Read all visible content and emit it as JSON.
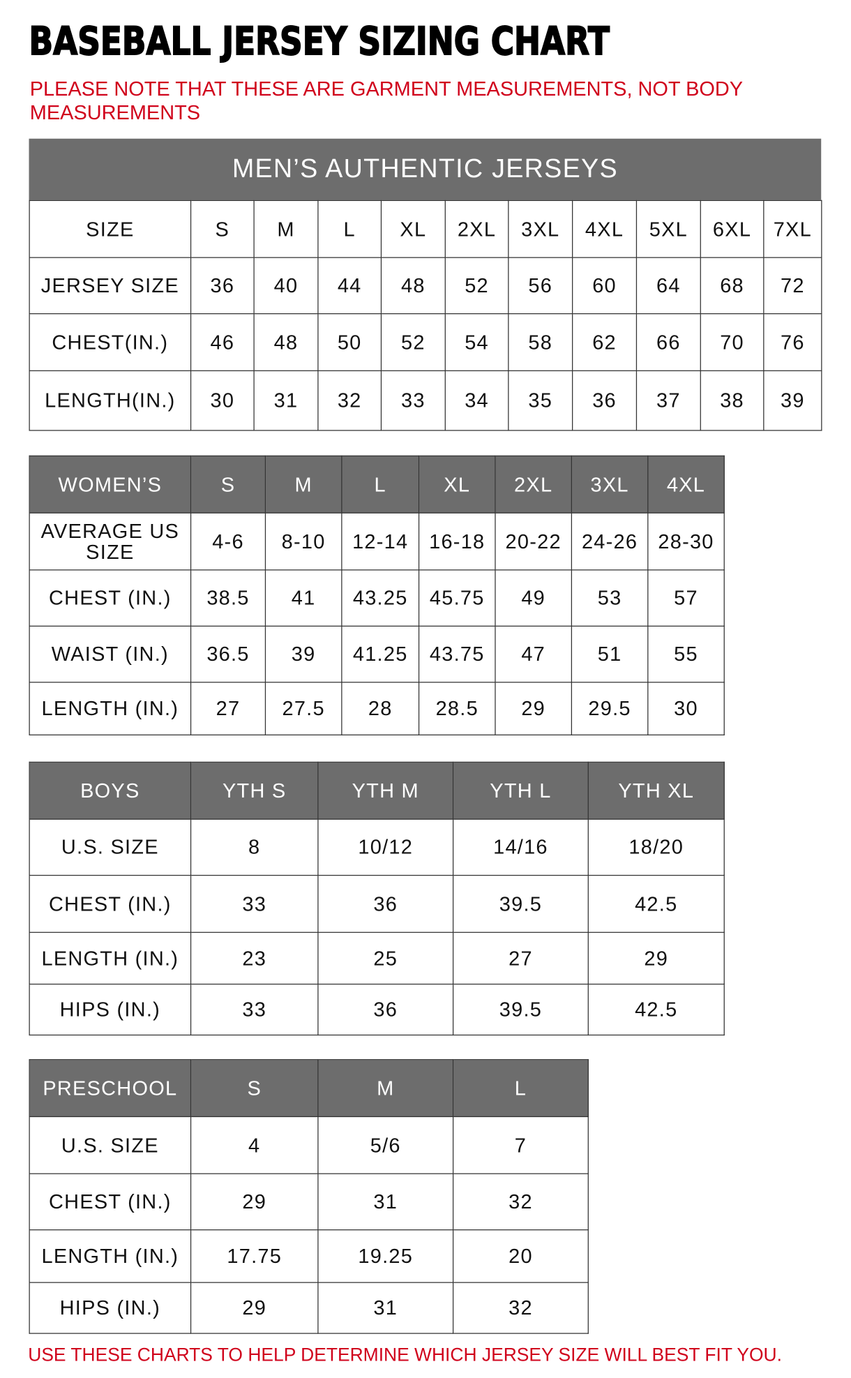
{
  "title": "BASEBALL JERSEY SIZING CHART",
  "note": "PLEASE NOTE THAT THESE ARE GARMENT MEASUREMENTS, NOT BODY MEASUREMENTS",
  "footer": "USE THESE CHARTS TO HELP DETERMINE WHICH JERSEY SIZE WILL BEST FIT YOU.",
  "colors": {
    "header_gray": "#6d6d6d",
    "note_red": "#d0021b"
  },
  "mens": {
    "banner": "MEN’S AUTHENTIC JERSEYS",
    "rows": [
      [
        "SIZE",
        "S",
        "M",
        "L",
        "XL",
        "2XL",
        "3XL",
        "4XL",
        "5XL",
        "6XL",
        "7XL"
      ],
      [
        "JERSEY SIZE",
        "36",
        "40",
        "44",
        "48",
        "52",
        "56",
        "60",
        "64",
        "68",
        "72"
      ],
      [
        "CHEST(IN.)",
        "46",
        "48",
        "50",
        "52",
        "54",
        "58",
        "62",
        "66",
        "70",
        "76"
      ],
      [
        "LENGTH(IN.)",
        "30",
        "31",
        "32",
        "33",
        "34",
        "35",
        "36",
        "37",
        "38",
        "39"
      ]
    ]
  },
  "womens": {
    "rows": [
      [
        "WOMEN’S",
        "S",
        "M",
        "L",
        "XL",
        "2XL",
        "3XL",
        "4XL"
      ],
      [
        "AVERAGE US SIZE",
        "4-6",
        "8-10",
        "12-14",
        "16-18",
        "20-22",
        "24-26",
        "28-30"
      ],
      [
        "CHEST (IN.)",
        "38.5",
        "41",
        "43.25",
        "45.75",
        "49",
        "53",
        "57"
      ],
      [
        "WAIST (IN.)",
        "36.5",
        "39",
        "41.25",
        "43.75",
        "47",
        "51",
        "55"
      ],
      [
        "LENGTH (IN.)",
        "27",
        "27.5",
        "28",
        "28.5",
        "29",
        "29.5",
        "30"
      ]
    ]
  },
  "boys": {
    "rows": [
      [
        "BOYS",
        "YTH S",
        "YTH M",
        "YTH L",
        "YTH XL"
      ],
      [
        "U.S. SIZE",
        "8",
        "10/12",
        "14/16",
        "18/20"
      ],
      [
        "CHEST (IN.)",
        "33",
        "36",
        "39.5",
        "42.5"
      ],
      [
        "LENGTH (IN.)",
        "23",
        "25",
        "27",
        "29"
      ],
      [
        "HIPS (IN.)",
        "33",
        "36",
        "39.5",
        "42.5"
      ]
    ]
  },
  "preschool": {
    "rows": [
      [
        "PRESCHOOL",
        "S",
        "M",
        "L"
      ],
      [
        "U.S. SIZE",
        "4",
        "5/6",
        "7"
      ],
      [
        "CHEST (IN.)",
        "29",
        "31",
        "32"
      ],
      [
        "LENGTH (IN.)",
        "17.75",
        "19.25",
        "20"
      ],
      [
        "HIPS (IN.)",
        "29",
        "31",
        "32"
      ]
    ]
  }
}
